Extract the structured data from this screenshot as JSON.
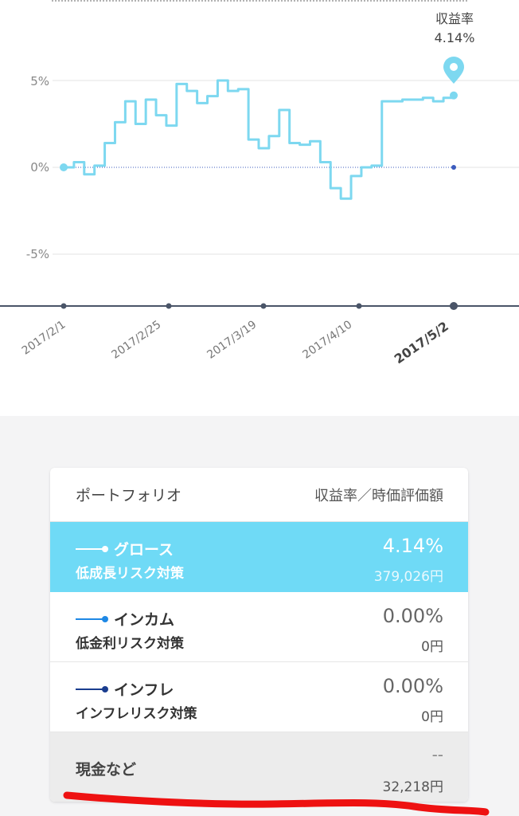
{
  "chart": {
    "y_ticks": [
      "5%",
      "0%",
      "-5%"
    ],
    "x_ticks": [
      "2017/2/1",
      "2017/2/25",
      "2017/3/19",
      "2017/4/10",
      "2017/5/2"
    ],
    "marker": {
      "title": "収益率",
      "value": "4.14%"
    },
    "line_color": "#7dd8f0",
    "axis_color": "#4a5568"
  },
  "chart_data": {
    "type": "line",
    "title": "",
    "xlabel": "",
    "ylabel": "",
    "ylim": [
      -8,
      10
    ],
    "x": [
      "2017/2/1",
      "2017/2/3",
      "2017/2/6",
      "2017/2/8",
      "2017/2/10",
      "2017/2/13",
      "2017/2/15",
      "2017/2/17",
      "2017/2/20",
      "2017/2/22",
      "2017/2/24",
      "2017/2/27",
      "2017/3/1",
      "2017/3/3",
      "2017/3/6",
      "2017/3/8",
      "2017/3/10",
      "2017/3/13",
      "2017/3/15",
      "2017/3/17",
      "2017/3/21",
      "2017/3/23",
      "2017/3/27",
      "2017/3/29",
      "2017/3/31",
      "2017/4/3",
      "2017/4/5",
      "2017/4/7",
      "2017/4/10",
      "2017/4/12",
      "2017/4/14",
      "2017/4/17",
      "2017/4/19",
      "2017/4/21",
      "2017/4/24",
      "2017/4/26",
      "2017/4/28",
      "2017/5/1",
      "2017/5/2"
    ],
    "series": [
      {
        "values": [
          0.0,
          0.3,
          -0.4,
          0.1,
          1.4,
          2.6,
          3.8,
          2.5,
          3.9,
          3.0,
          2.4,
          4.8,
          4.4,
          3.7,
          4.1,
          5.0,
          4.4,
          4.5,
          1.6,
          1.1,
          1.8,
          3.3,
          1.4,
          1.3,
          1.5,
          0.3,
          -1.2,
          -1.8,
          -0.5,
          0.0,
          0.1,
          3.8,
          3.8,
          3.9,
          3.9,
          4.0,
          3.8,
          4.0,
          4.14
        ]
      }
    ],
    "grid": true,
    "legend": "none"
  },
  "portfolio": {
    "header_left": "ポートフォリオ",
    "header_right": "収益率／時価評価額",
    "rows": [
      {
        "name": "グロース",
        "sub": "低成長リスク対策",
        "rate": "4.14%",
        "amount": "379,026円",
        "color": "#ffffff"
      },
      {
        "name": "インカム",
        "sub": "低金利リスク対策",
        "rate": "0.00%",
        "amount": "0円",
        "color": "#1e88e5"
      },
      {
        "name": "インフレ",
        "sub": "インフレリスク対策",
        "rate": "0.00%",
        "amount": "0円",
        "color": "#1a3d8f"
      }
    ],
    "cash": {
      "name": "現金など",
      "rate": "--",
      "amount": "32,218円"
    }
  },
  "annotation": {
    "color": "#ee1111"
  }
}
